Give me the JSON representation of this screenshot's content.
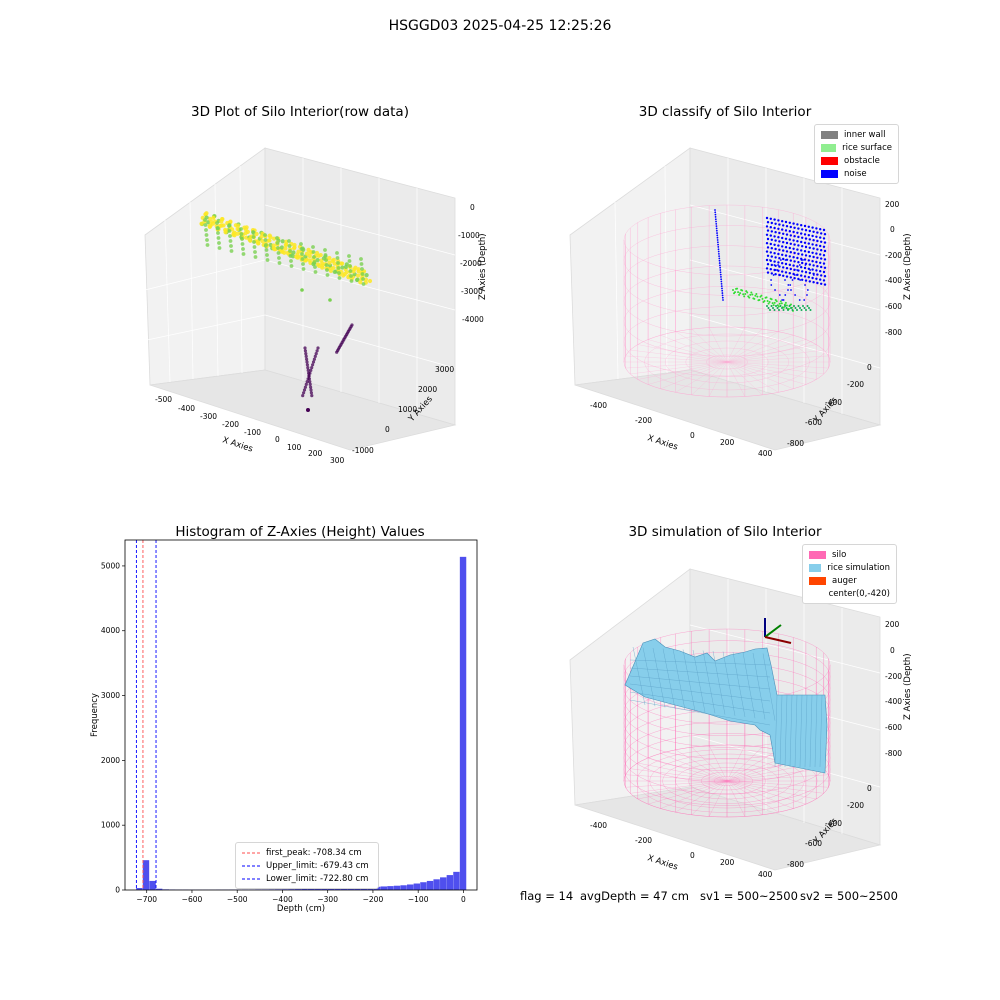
{
  "suptitle": "HSGGD03 2025-04-25 12:25:26",
  "chart_data": [
    {
      "type": "scatter",
      "title": "3D Plot of Silo Interior(row data)",
      "xlabel": "X Axies",
      "ylabel": "Y Axies",
      "zlabel": "Z Axies (Depth)",
      "x_ticks": [
        "-500",
        "-400",
        "-300",
        "-200",
        "-100",
        "0",
        "100",
        "200",
        "300"
      ],
      "y_ticks": [
        "-1000",
        "0",
        "1000",
        "2000",
        "3000"
      ],
      "z_ticks": [
        "0",
        "-1000",
        "-2000",
        "-3000",
        "-4000"
      ],
      "colormap": [
        "#440154",
        "#7ad151",
        "#fde725"
      ]
    },
    {
      "type": "scatter",
      "title": "3D classify of Silo Interior",
      "xlabel": "X Axies",
      "ylabel": "Y Axies",
      "zlabel": "Z Axies (Depth)",
      "x_ticks": [
        "-400",
        "-200",
        "0",
        "200",
        "400"
      ],
      "y_ticks": [
        "0",
        "-200",
        "-400",
        "-600",
        "-800"
      ],
      "z_ticks": [
        "200",
        "0",
        "-200",
        "-400",
        "-600",
        "-800"
      ],
      "legend": [
        {
          "name": "inner wall",
          "color": "#808080"
        },
        {
          "name": "rice surface",
          "color": "#90ee90"
        },
        {
          "name": "obstacle",
          "color": "#ff0000"
        },
        {
          "name": "noise",
          "color": "#0000ff"
        }
      ]
    },
    {
      "type": "bar",
      "title": "Histogram of Z-Axies (Height) Values",
      "xlabel": "Depth (cm)",
      "ylabel": "Frequency",
      "xlim": [
        -748,
        30
      ],
      "ylim": [
        0,
        5400
      ],
      "x_ticks": [
        -700,
        -600,
        -500,
        -400,
        -300,
        -200,
        -100,
        0
      ],
      "y_ticks": [
        0,
        1000,
        2000,
        3000,
        4000,
        5000
      ],
      "bin_width": 14.6,
      "bars": [
        {
          "x": -716,
          "y": 30
        },
        {
          "x": -701.4,
          "y": 460
        },
        {
          "x": -686.8,
          "y": 140
        },
        {
          "x": -672.2,
          "y": 20
        },
        {
          "x": -657.6,
          "y": 10
        },
        {
          "x": -643,
          "y": 8
        },
        {
          "x": -628.4,
          "y": 6
        },
        {
          "x": -613.8,
          "y": 6
        },
        {
          "x": -599.2,
          "y": 5
        },
        {
          "x": -584.6,
          "y": 5
        },
        {
          "x": -570,
          "y": 5
        },
        {
          "x": -555.4,
          "y": 5
        },
        {
          "x": -540.8,
          "y": 6
        },
        {
          "x": -526.2,
          "y": 6
        },
        {
          "x": -511.6,
          "y": 7
        },
        {
          "x": -497,
          "y": 7
        },
        {
          "x": -482.4,
          "y": 8
        },
        {
          "x": -467.8,
          "y": 8
        },
        {
          "x": -453.2,
          "y": 9
        },
        {
          "x": -438.6,
          "y": 9
        },
        {
          "x": -424,
          "y": 10
        },
        {
          "x": -409.4,
          "y": 11
        },
        {
          "x": -394.8,
          "y": 12
        },
        {
          "x": -380.2,
          "y": 13
        },
        {
          "x": -365.6,
          "y": 14
        },
        {
          "x": -351,
          "y": 16
        },
        {
          "x": -336.4,
          "y": 18
        },
        {
          "x": -321.8,
          "y": 20
        },
        {
          "x": -307.2,
          "y": 22
        },
        {
          "x": -292.6,
          "y": 24
        },
        {
          "x": -278,
          "y": 27
        },
        {
          "x": -263.4,
          "y": 30
        },
        {
          "x": -248.8,
          "y": 33
        },
        {
          "x": -234.2,
          "y": 37
        },
        {
          "x": -219.6,
          "y": 41
        },
        {
          "x": -205,
          "y": 45
        },
        {
          "x": -190.4,
          "y": 50
        },
        {
          "x": -175.8,
          "y": 55
        },
        {
          "x": -161.2,
          "y": 60
        },
        {
          "x": -146.6,
          "y": 66
        },
        {
          "x": -132,
          "y": 73
        },
        {
          "x": -117.4,
          "y": 85
        },
        {
          "x": -102.8,
          "y": 100
        },
        {
          "x": -88.2,
          "y": 120
        },
        {
          "x": -73.6,
          "y": 140
        },
        {
          "x": -59,
          "y": 165
        },
        {
          "x": -44.4,
          "y": 195
        },
        {
          "x": -29.8,
          "y": 230
        },
        {
          "x": -15.2,
          "y": 280
        },
        {
          "x": -0.6,
          "y": 5140
        }
      ],
      "lines": [
        {
          "value": -708.34,
          "color": "#ff4d4d",
          "label": "first_peak: -708.34 cm"
        },
        {
          "value": -679.43,
          "color": "#0000ff",
          "label": "Upper_limit: -679.43 cm"
        },
        {
          "value": -722.8,
          "color": "#0000ff",
          "label": "Lower_limit: -722.80 cm"
        }
      ],
      "bar_color": "#4f4fee"
    },
    {
      "type": "surface",
      "title": "3D simulation of Silo Interior",
      "xlabel": "X Axies",
      "ylabel": "Y Axies",
      "zlabel": "Z Axies (Depth)",
      "x_ticks": [
        "-400",
        "-200",
        "0",
        "200",
        "400"
      ],
      "y_ticks": [
        "0",
        "-200",
        "-400",
        "-600",
        "-800"
      ],
      "z_ticks": [
        "200",
        "0",
        "-200",
        "-400",
        "-600",
        "-800"
      ],
      "legend": [
        {
          "name": "silo",
          "color": "#ff69b4"
        },
        {
          "name": "rice simulation",
          "color": "#87ceeb"
        },
        {
          "name": "auger",
          "color": "#ff4500"
        },
        {
          "name": "center(0,-420)",
          "color": "#ffffff"
        }
      ]
    }
  ],
  "status": {
    "flag": "flag = 14",
    "avg_depth": "avgDepth = 47 cm",
    "sv1": "sv1 = 500~2500",
    "sv2": "sv2 = 500~2500"
  }
}
